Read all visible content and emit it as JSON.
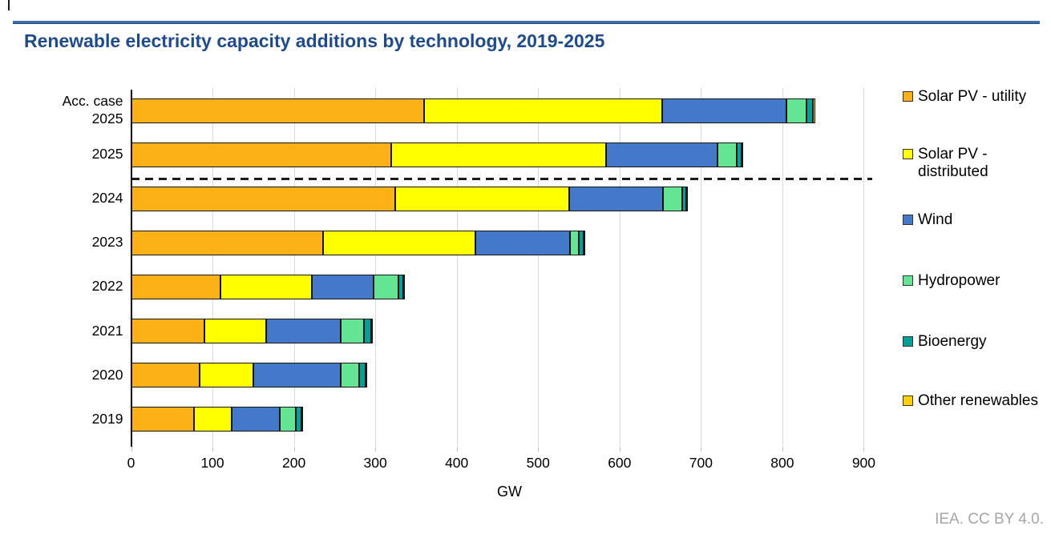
{
  "page": {
    "title": "Renewable electricity capacity additions by technology, 2019-2025",
    "attribution": "IEA. CC BY 4.0.",
    "accent_colors": {
      "title_text": "#1E4B8F",
      "title_rule": "#3E6DA9",
      "gridline": "#D9D9D9",
      "attribution_text": "#A6A6A6"
    }
  },
  "chart_data": {
    "type": "bar",
    "orientation": "horizontal",
    "stacked": true,
    "title": "Renewable electricity capacity additions by technology, 2019-2025",
    "xlabel": "GW",
    "ylabel": "",
    "xlim": [
      0,
      900
    ],
    "xticks": [
      0,
      100,
      200,
      300,
      400,
      500,
      600,
      700,
      800,
      900
    ],
    "grid": "vertical",
    "legend_position": "right",
    "categories": [
      "Acc. case\n2025",
      "2025",
      "2024",
      "2023",
      "2022",
      "2021",
      "2020",
      "2019"
    ],
    "series": [
      {
        "name": "Solar PV - utility",
        "color": "#FCB116",
        "values": [
          360,
          320,
          324,
          236,
          110,
          90,
          84,
          77
        ]
      },
      {
        "name": "Solar PV - distributed",
        "color": "#FFFF00",
        "values": [
          292,
          263,
          214,
          187,
          112,
          76,
          66,
          47
        ]
      },
      {
        "name": "Wind",
        "color": "#4478C9",
        "values": [
          153,
          137,
          115,
          116,
          76,
          92,
          108,
          59
        ]
      },
      {
        "name": "Hydropower",
        "color": "#63E593",
        "values": [
          25,
          24,
          24,
          11,
          30,
          28,
          22,
          19
        ]
      },
      {
        "name": "Bioenergy",
        "color": "#00A19A",
        "values": [
          8,
          6,
          5,
          6,
          6,
          9,
          8,
          7
        ]
      },
      {
        "name": "Other renewables",
        "color": "#FFD100",
        "values": [
          2,
          1,
          1,
          1,
          1,
          1,
          2,
          2
        ]
      }
    ],
    "totals": [
      840,
      751,
      683,
      557,
      335,
      296,
      290,
      211
    ],
    "annotations": {
      "dashed_separator": "between accelerated-case/forecast rows and historical rows (below 2025 bar)"
    }
  }
}
